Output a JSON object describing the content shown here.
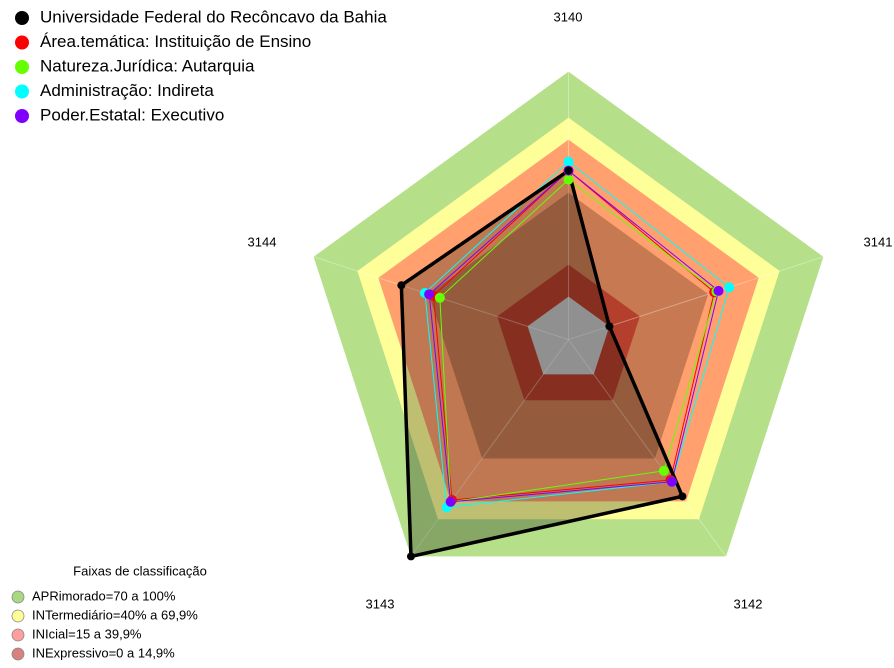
{
  "chart_data": {
    "type": "radar",
    "categories": [
      "3140",
      "3141",
      "3142",
      "3143",
      "3144"
    ],
    "ylim": [
      0,
      100
    ],
    "series": [
      {
        "name": "Universidade Federal do Recôncavo da Bahia",
        "color": "#000000",
        "values": [
          56,
          0,
          67,
          100,
          59
        ]
      },
      {
        "name": "Área.temática: Instituição de Ensino",
        "color": "#ff0000",
        "values": [
          56,
          49,
          58,
          69,
          44
        ]
      },
      {
        "name": "Natureza.Jurídica: Autarquia",
        "color": "#66ff00",
        "values": [
          52,
          50,
          53,
          70,
          41
        ]
      },
      {
        "name": "Administração: Indireta",
        "color": "#00ffff",
        "values": [
          60,
          56,
          59,
          73,
          48
        ]
      },
      {
        "name": "Poder.Estatal: Executivo",
        "color": "#8000ff",
        "values": [
          56,
          51,
          59,
          70,
          46
        ]
      }
    ],
    "legend_title": "Faixas de classificação",
    "bands": [
      {
        "label": "APRimorado=70 a 100%",
        "color": "#a8d880"
      },
      {
        "label": "INTermediário=40% a 69,9%",
        "color": "#ffff99"
      },
      {
        "label": "INIcial=15 a 39,9%",
        "color": "#ff9e9e"
      },
      {
        "label": "INExpressivo=0 a 14,9%",
        "color": "#d98080"
      }
    ]
  }
}
